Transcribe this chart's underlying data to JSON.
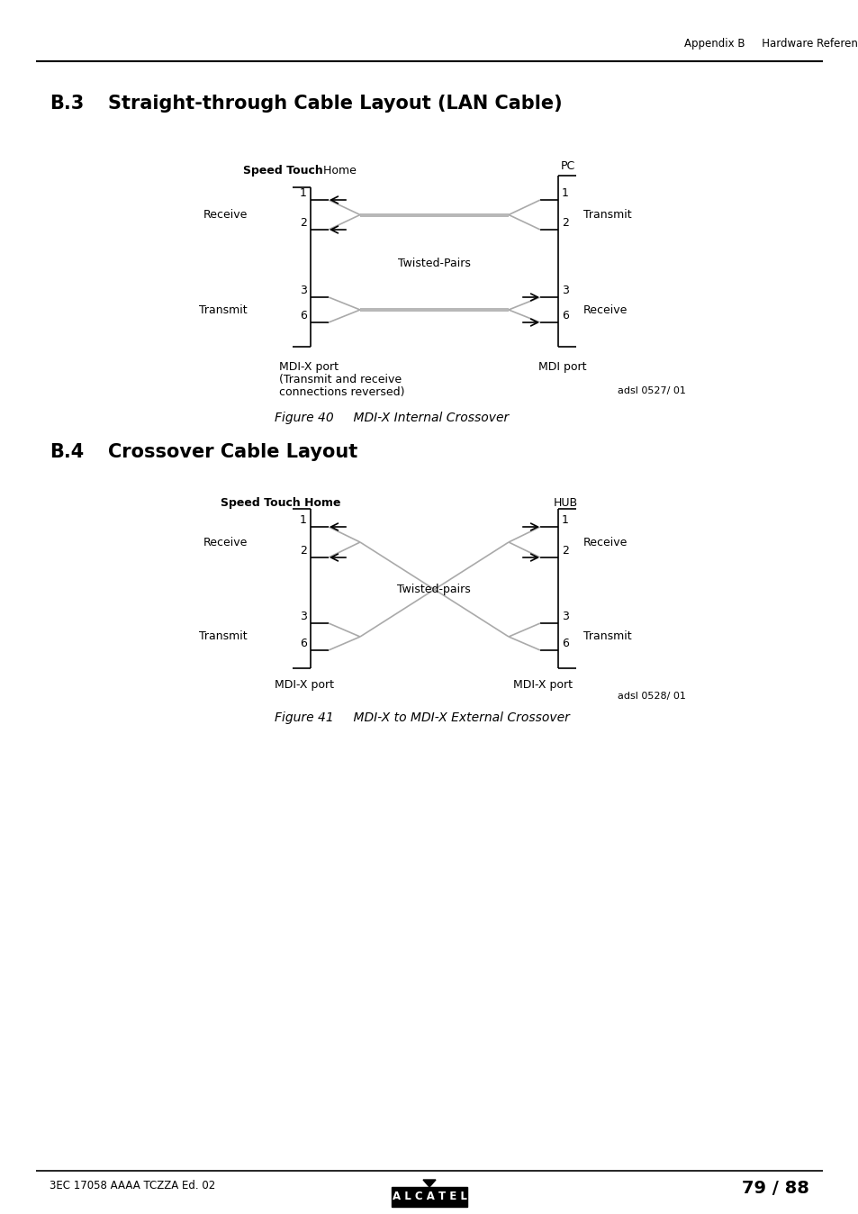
{
  "header_text": "Appendix B     Hardware Reference",
  "section1_title_num": "B.3",
  "section1_title_text": "Straight-through Cable Layout (LAN Cable)",
  "section2_title_num": "B.4",
  "section2_title_text": "Crossover Cable Layout",
  "fig40_num": "Figure 40",
  "fig40_text": "    MDI-X Internal Crossover",
  "fig41_num": "Figure 41",
  "fig41_text": "    MDI-X to MDI-X External Crossover",
  "footer_left": "3EC 17058 AAAA TCZZA Ed. 02",
  "footer_right": "79 / 88",
  "adsl1": "adsl 0527/ 01",
  "adsl2": "adsl 0528/ 01",
  "bg_color": "#ffffff",
  "text_color": "#000000"
}
